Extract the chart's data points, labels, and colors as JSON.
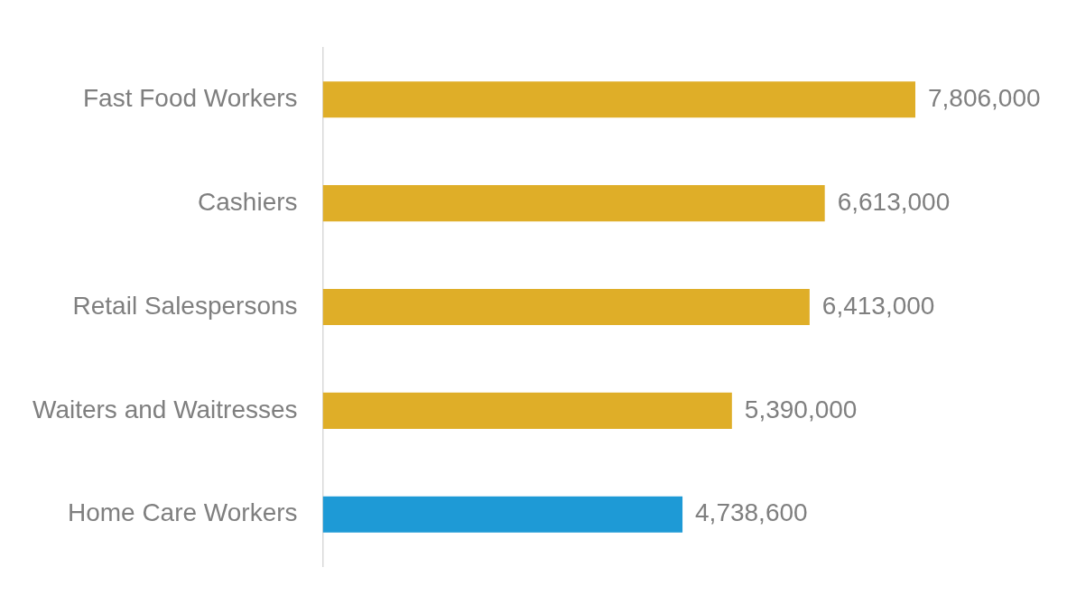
{
  "chart_data": {
    "type": "bar",
    "orientation": "horizontal",
    "categories": [
      "Fast Food Workers",
      "Cashiers",
      "Retail Salespersons",
      "Waiters and Waitresses",
      "Home Care Workers"
    ],
    "values": [
      7806000,
      6613000,
      6413000,
      5390000,
      4738600
    ],
    "value_labels": [
      "7,806,000",
      "6,613,000",
      "6,413,000",
      "5,390,000",
      "4,738,600"
    ],
    "colors": [
      "#dfae28",
      "#dfae28",
      "#dfae28",
      "#dfae28",
      "#1e9ad6"
    ],
    "grid": false,
    "legend": false,
    "tick_labels": "y"
  }
}
